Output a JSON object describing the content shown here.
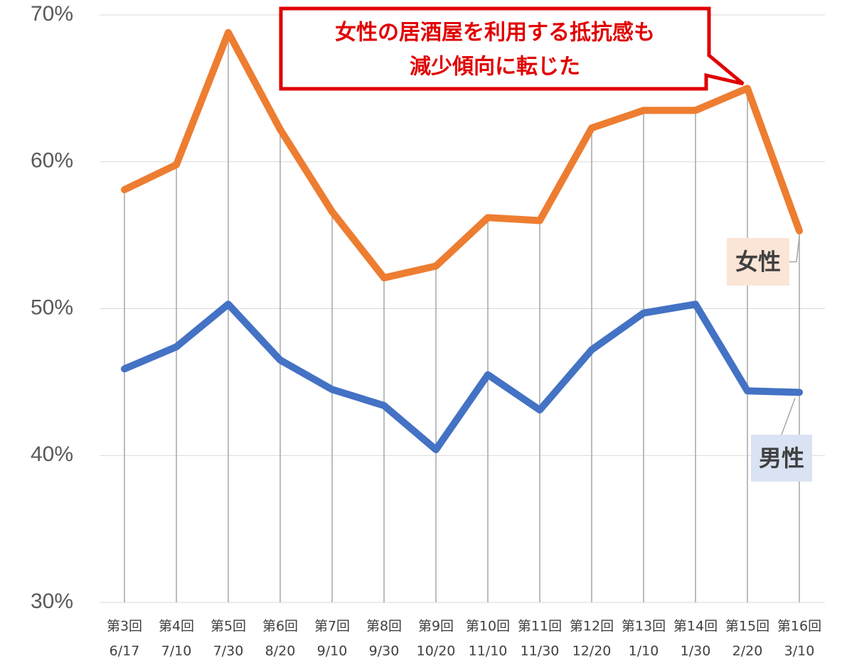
{
  "chart_data": {
    "type": "line",
    "categories": [
      [
        "第3回",
        "6/17"
      ],
      [
        "第4回",
        "7/10"
      ],
      [
        "第5回",
        "7/30"
      ],
      [
        "第6回",
        "8/20"
      ],
      [
        "第7回",
        "9/10"
      ],
      [
        "第8回",
        "9/30"
      ],
      [
        "第9回",
        "10/20"
      ],
      [
        "第10回",
        "11/10"
      ],
      [
        "第11回",
        "11/30"
      ],
      [
        "第12回",
        "12/20"
      ],
      [
        "第13回",
        "1/10"
      ],
      [
        "第14回",
        "1/30"
      ],
      [
        "第15回",
        "2/20"
      ],
      [
        "第16回",
        "3/10"
      ]
    ],
    "series": [
      {
        "name": "女性",
        "color": "#ed7d31",
        "values": [
          58.1,
          59.8,
          68.8,
          62.2,
          56.6,
          52.1,
          52.9,
          56.2,
          56.0,
          62.3,
          63.5,
          63.5,
          65.0,
          55.3
        ]
      },
      {
        "name": "男性",
        "color": "#4472c4",
        "values": [
          45.9,
          47.4,
          50.3,
          46.5,
          44.5,
          43.4,
          40.4,
          45.5,
          43.1,
          47.2,
          49.7,
          50.3,
          44.4,
          44.3
        ]
      }
    ],
    "ylim": [
      30,
      70
    ],
    "yticks": [
      {
        "value": 30,
        "label": "30%"
      },
      {
        "value": 40,
        "label": "40%"
      },
      {
        "value": 50,
        "label": "50%"
      },
      {
        "value": 60,
        "label": "60%"
      },
      {
        "value": 70,
        "label": "70%"
      }
    ],
    "grid": true,
    "annotation": [
      "女性の居酒屋を利用する抵抗感も",
      "減少傾向に転じた"
    ]
  }
}
